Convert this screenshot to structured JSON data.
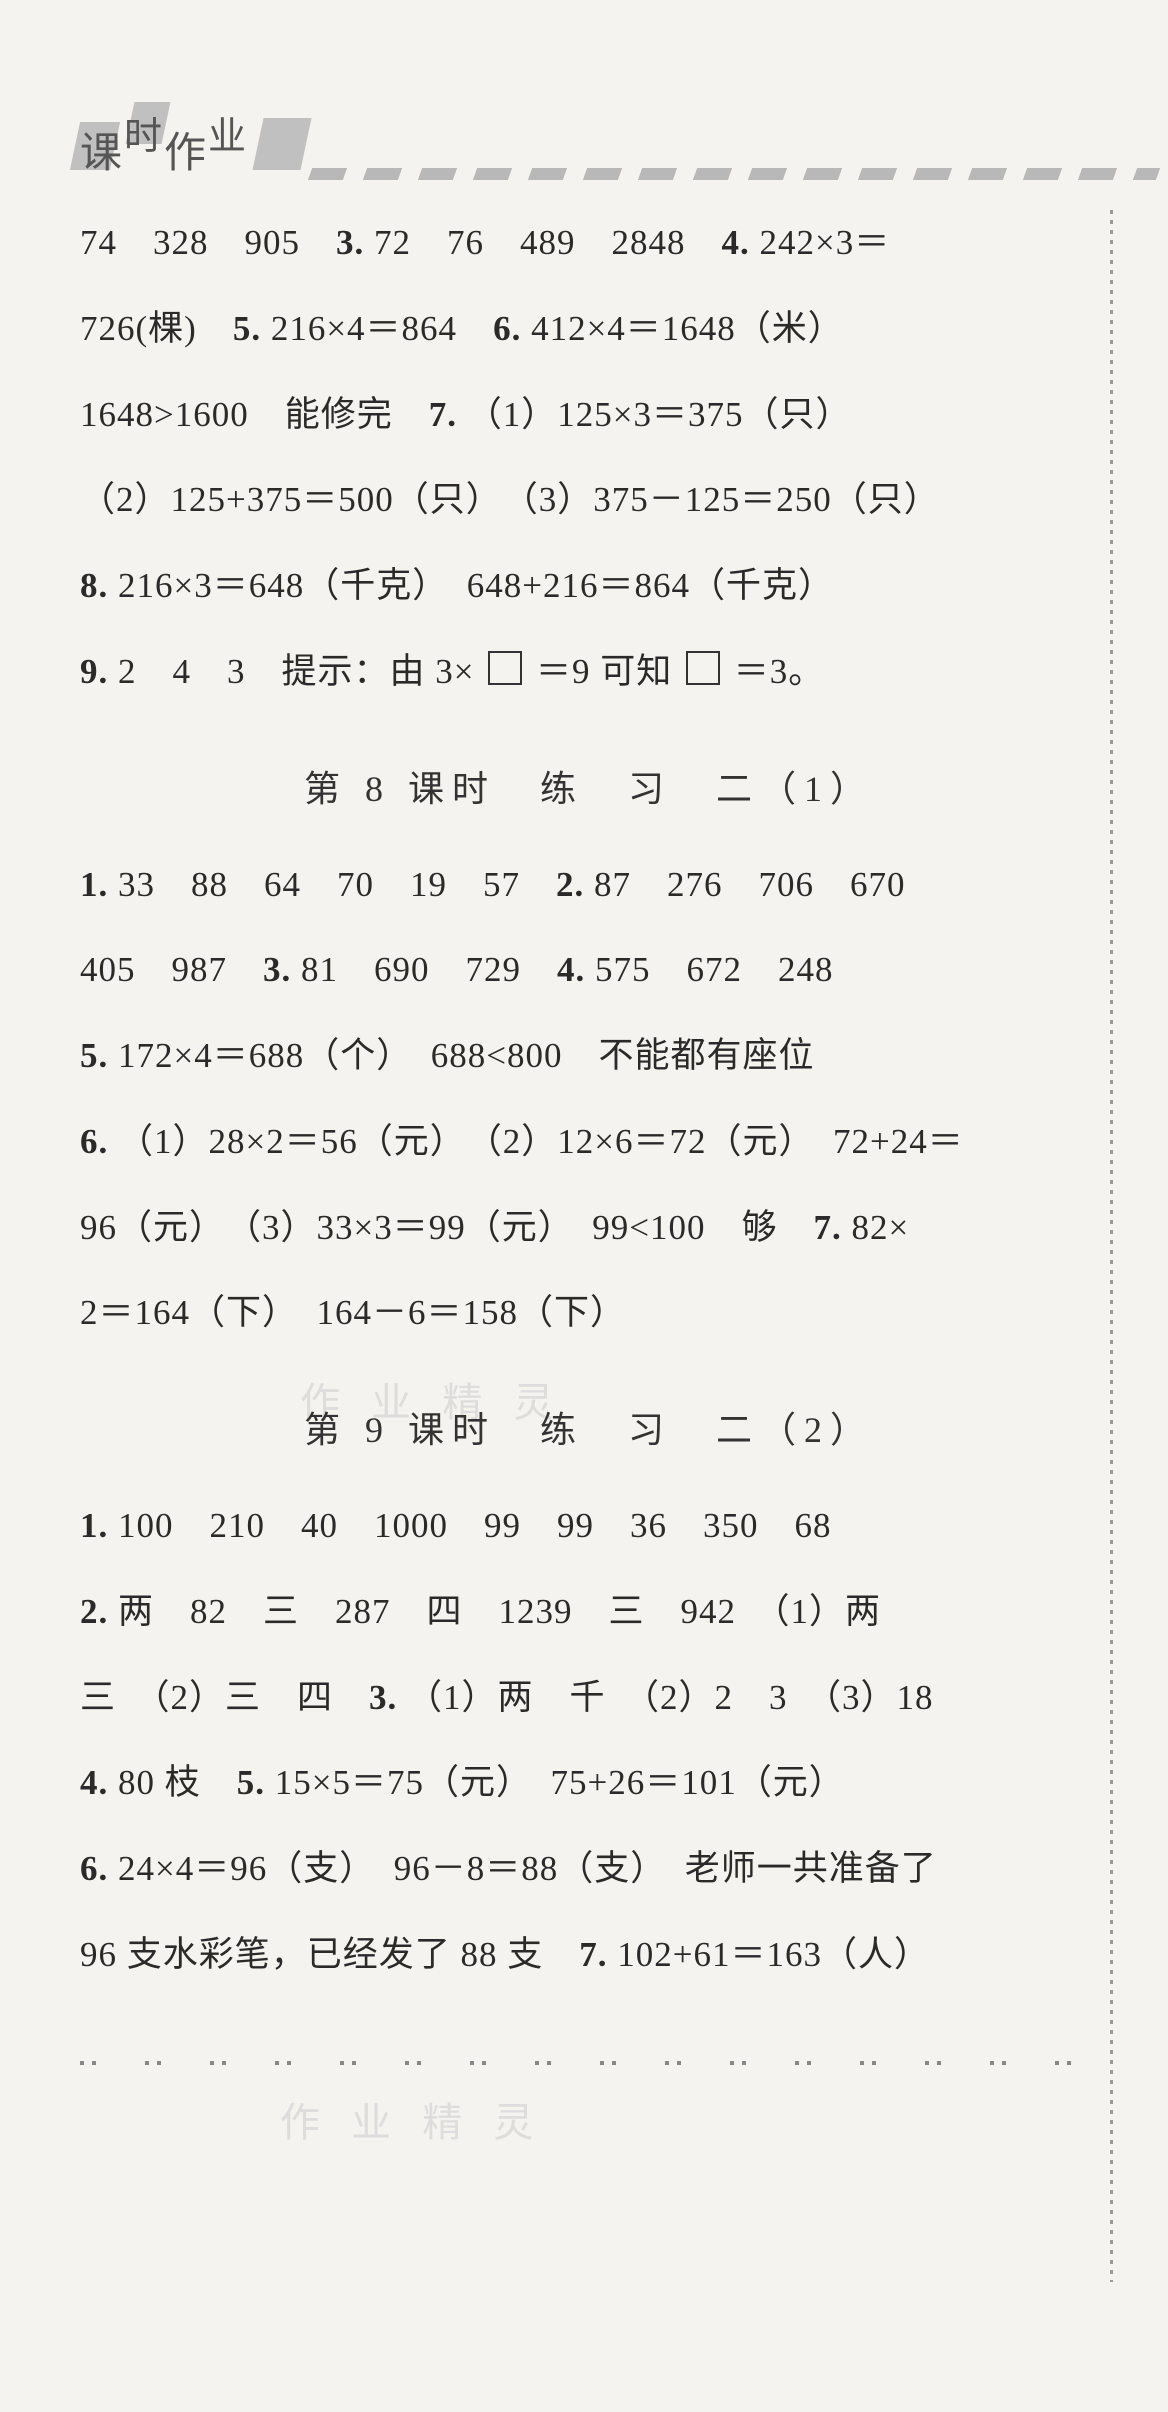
{
  "header": {
    "chars": [
      "课",
      "时",
      "作",
      "业"
    ]
  },
  "section1": {
    "lines": [
      "74　328　905　<b>3.</b> 72　76　489　2848　<b>4.</b> 242×3＝",
      "726(棵)　<b>5.</b> 216×4＝864　<b>6.</b> 412×4＝1648（米）",
      "1648>1600　能修完　<b>7.</b> （1）125×3＝375（只）",
      "（2）125+375＝500（只）　（3）375－125＝250（只）",
      "<b>8.</b> 216×3＝648（千克）　648+216＝864（千克）",
      "<b>9.</b> 2　4　3　提示：由 3× [BOX] ＝9 可知 [BOX] ＝3。"
    ]
  },
  "title2": "第 8 课时　练　习　二（1）",
  "section2": {
    "lines": [
      "<b>1.</b> 33　88　64　70　19　57　<b>2.</b> 87　276　706　670",
      "405　987　<b>3.</b> 81　690　729　<b>4.</b> 575　672　248",
      "<b>5.</b> 172×4＝688（个）　688<800　不能都有座位",
      "<b>6.</b> （1）28×2＝56（元）　（2）12×6＝72（元）　72+24＝",
      "96（元）　（3）33×3＝99（元）　99<100　够　<b>7.</b> 82×",
      "2＝164（下）　164－6＝158（下）"
    ]
  },
  "title3": "第 9 课时　练　习　二（2）",
  "section3": {
    "lines": [
      "<b>1.</b> 100　210　40　1000　99　99　36　350　68",
      "<b>2.</b> 两　82　三　287　四　1239　三　942　（1）两",
      "三　（2）三　四　<b>3.</b> （1）两　千　（2）2　3　（3）18",
      "<b>4.</b> 80 枝　<b>5.</b> 15×5＝75（元）　75+26＝101（元）",
      "<b>6.</b> 24×4＝96（支）　96－8＝88（支）　老师一共准备了",
      "96 支水彩笔，已经发了 88 支　<b>7.</b> 102+61＝163（人）"
    ]
  },
  "watermarks": [
    "作 业 精 灵",
    "作 业 精 灵"
  ]
}
